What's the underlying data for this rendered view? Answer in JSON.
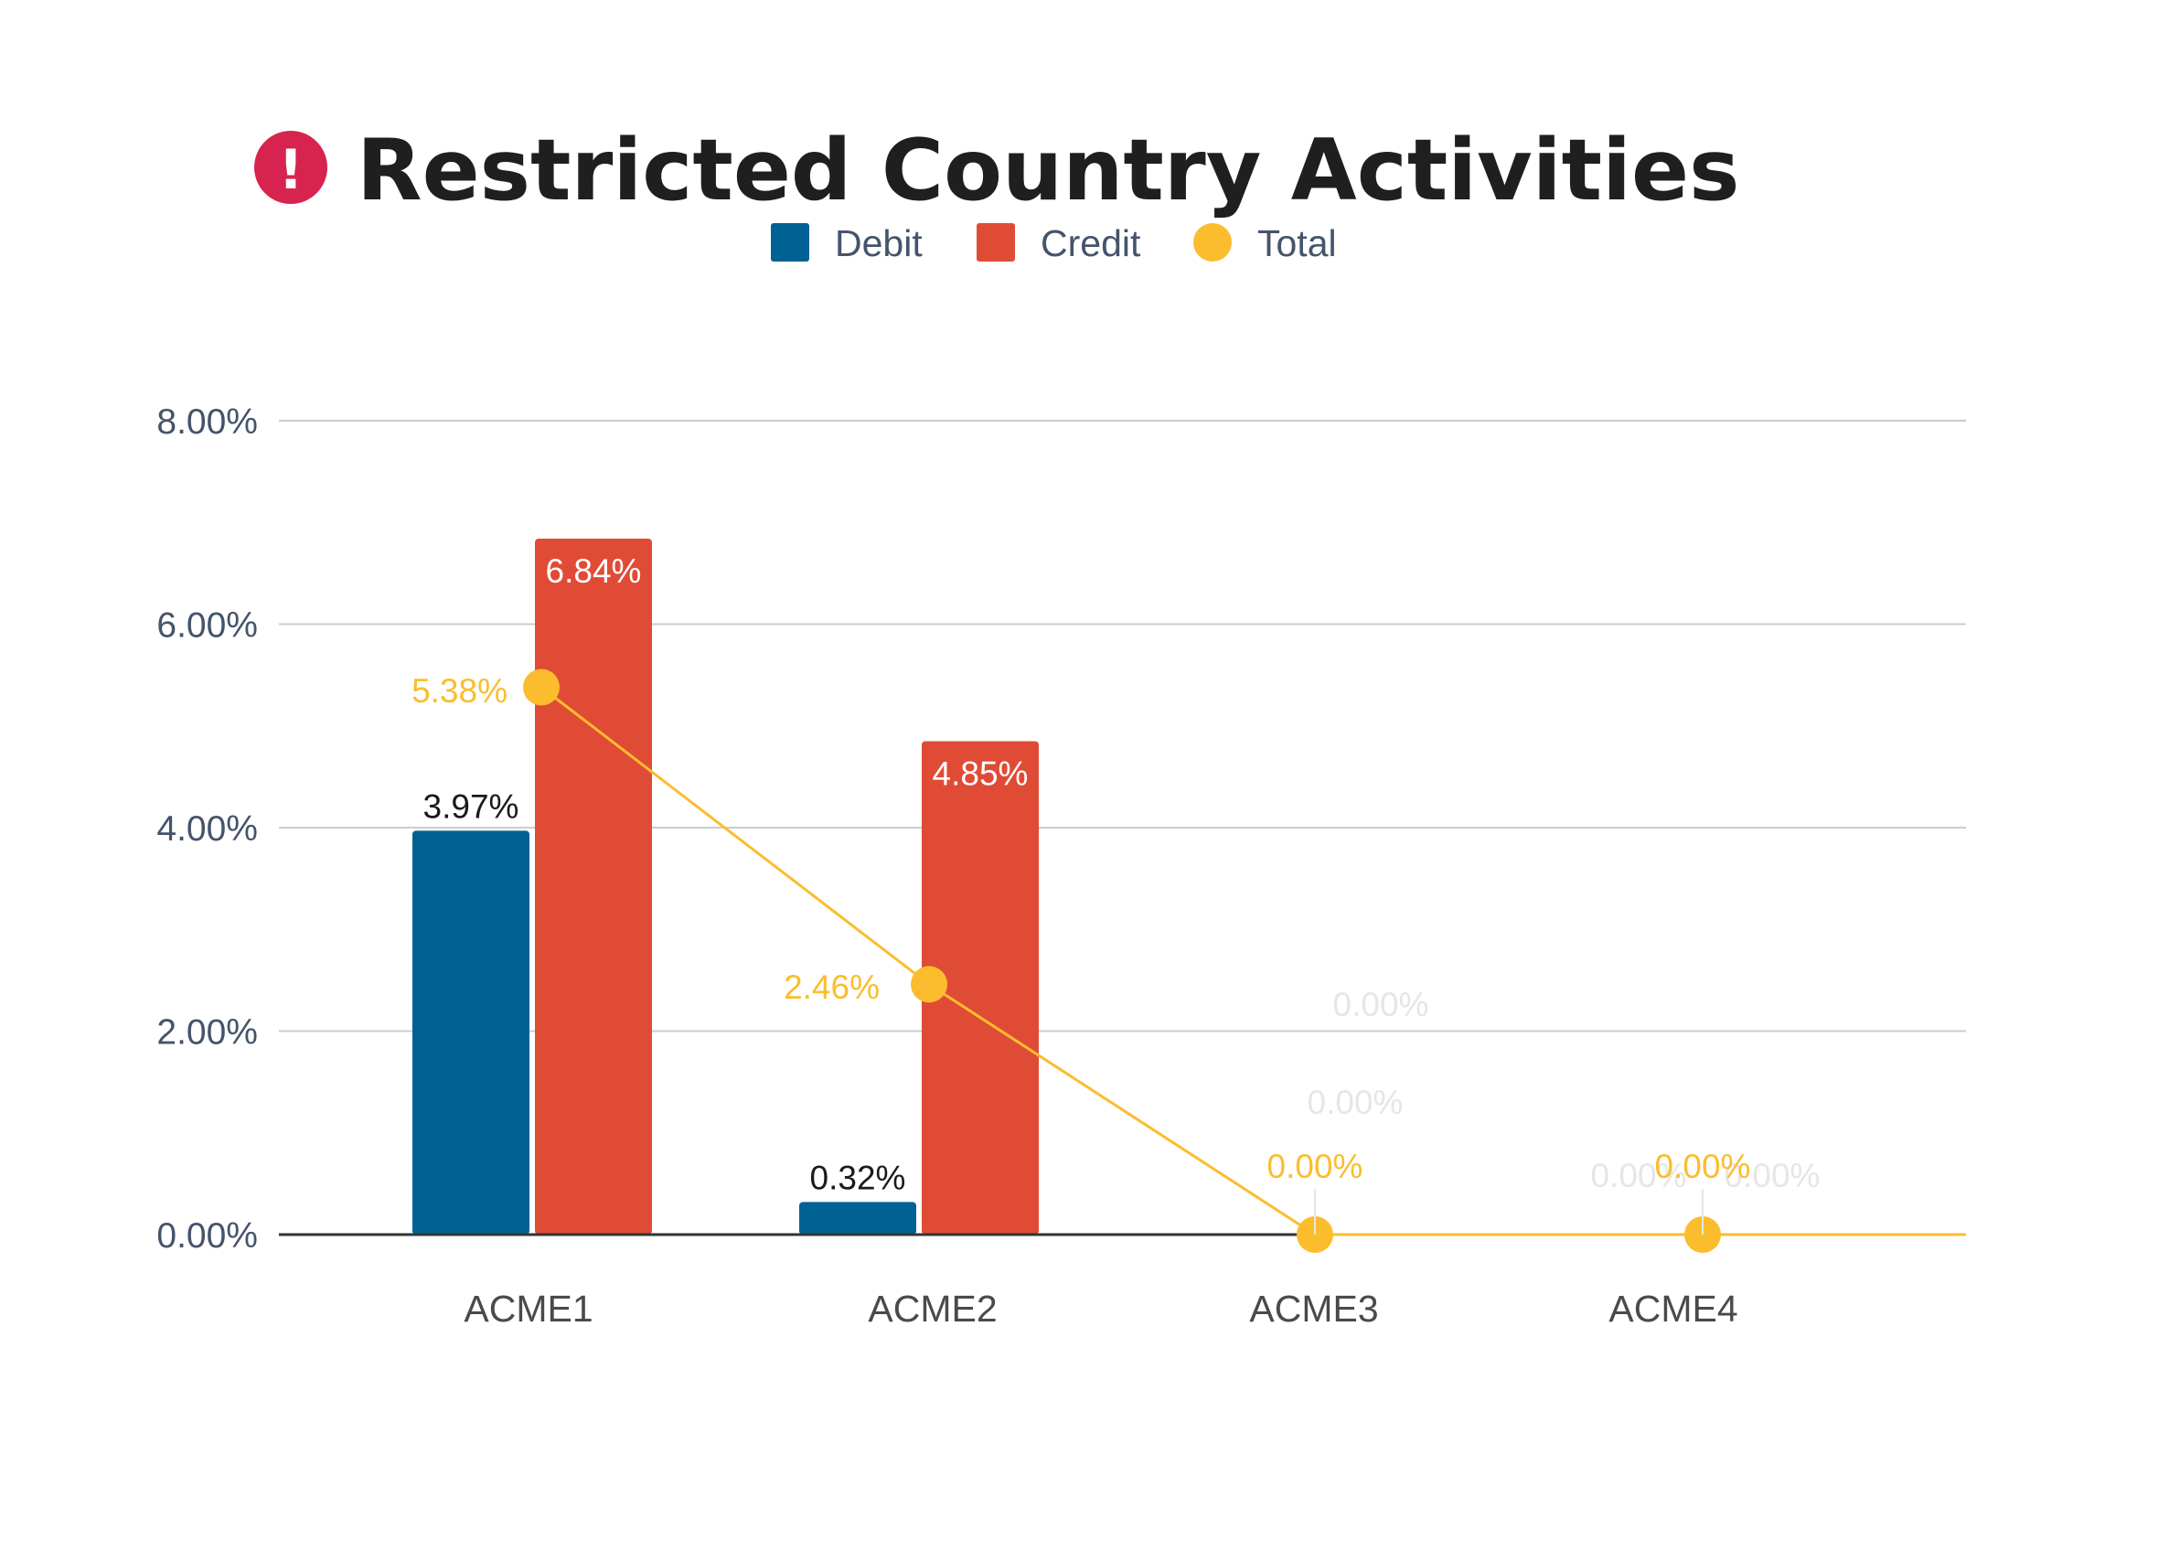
{
  "header": {
    "icon": "exclamation-icon",
    "icon_color": "#d7244f",
    "icon_glyph": "!",
    "title": "Restricted Country Activities"
  },
  "chart_data": {
    "type": "bar",
    "title": "Restricted Country Activities",
    "xlabel": "",
    "ylabel": "",
    "categories": [
      "ACME1",
      "ACME2",
      "ACME3",
      "ACME4"
    ],
    "ylim": [
      0,
      8
    ],
    "yticks": [
      "0.00%",
      "2.00%",
      "4.00%",
      "6.00%",
      "8.00%"
    ],
    "grid": true,
    "legend_position": "top",
    "series": [
      {
        "name": "Debit",
        "type": "bar",
        "color": "#006194",
        "values": [
          3.97,
          0.32,
          0,
          0
        ],
        "labels": [
          "3.97%",
          "0.32%",
          "0.00%",
          "0.00%"
        ]
      },
      {
        "name": "Credit",
        "type": "bar",
        "color": "#e04b36",
        "values": [
          6.84,
          4.85,
          0,
          0
        ],
        "labels": [
          "6.84%",
          "4.85%",
          "0.00%",
          "0.00%"
        ]
      },
      {
        "name": "Total",
        "type": "line",
        "color": "#fbbd2e",
        "values": [
          5.38,
          2.46,
          0,
          0
        ],
        "labels": [
          "5.38%",
          "2.46%",
          "0.00%",
          "0.00%"
        ]
      }
    ]
  }
}
